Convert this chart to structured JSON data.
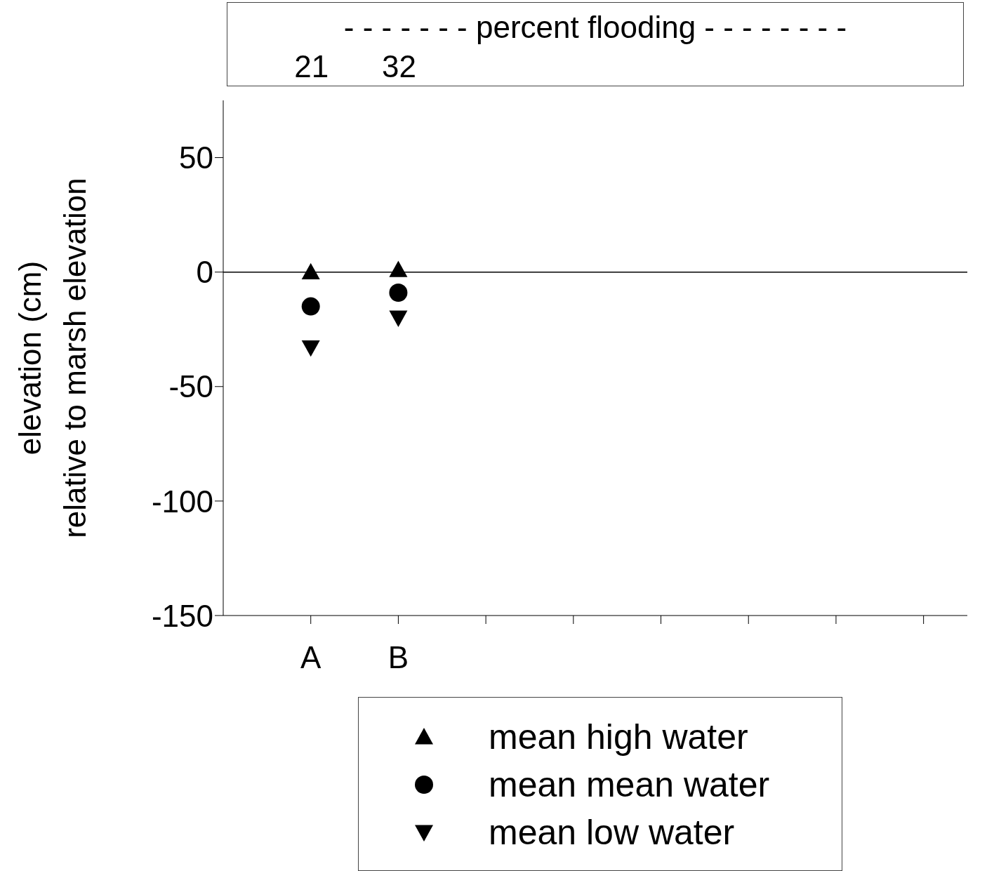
{
  "chart_data": {
    "type": "scatter",
    "ylabel": "elevation (cm)\nrelative to marsh elevation",
    "categories": [
      "A",
      "B",
      null,
      null,
      null,
      null,
      null,
      null
    ],
    "series": [
      {
        "name": "mean high water",
        "color": "#000000",
        "marker": "triangle",
        "values": [
          0,
          1,
          null,
          null,
          null,
          null,
          null,
          null
        ]
      },
      {
        "name": "mean mean water",
        "color": "#000000",
        "marker": "circle",
        "values": [
          -15,
          -9,
          null,
          null,
          null,
          null,
          null,
          null
        ]
      },
      {
        "name": "mean low water",
        "color": "#000000",
        "marker": "triangle-down",
        "values": [
          -33,
          -20,
          null,
          null,
          null,
          null,
          null,
          null
        ]
      }
    ],
    "ylim": [
      -150,
      75
    ],
    "yticks": [
      -150,
      -100,
      -50,
      0,
      50
    ],
    "grid": false,
    "legend": "bottom",
    "ref_lines": [
      {
        "axis": "y",
        "value": 0
      }
    ],
    "annotations": [
      "- - - - - - - percent flooding - - - - - - - -",
      "21",
      "32"
    ]
  }
}
